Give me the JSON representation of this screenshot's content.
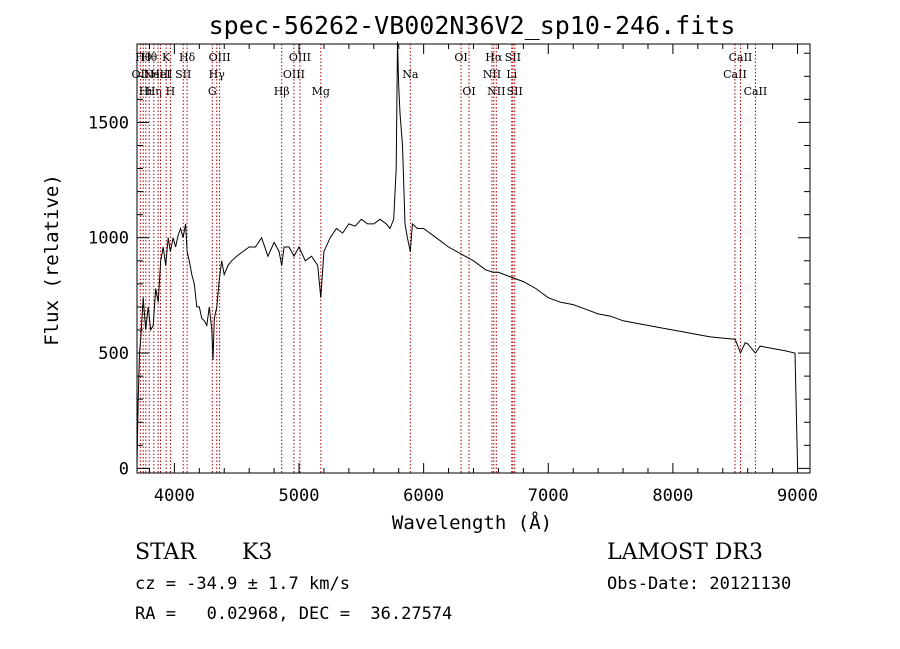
{
  "chart_data": {
    "type": "line",
    "title": "spec-56262-VB002N36V2_sp10-246.fits",
    "xlabel": "Wavelength (Å)",
    "ylabel": "Flux (relative)",
    "xlim": [
      3700,
      9100
    ],
    "ylim": [
      -20,
      1840
    ],
    "x_ticks": [
      4000,
      5000,
      6000,
      7000,
      8000,
      9000
    ],
    "x_tick_labels": [
      "4000",
      "5000",
      "6000",
      "7000",
      "8000",
      "9000"
    ],
    "y_ticks": [
      0,
      500,
      1000,
      1500
    ],
    "y_tick_labels": [
      "0",
      "500",
      "1000",
      "1500"
    ],
    "line_color": "#000000",
    "marker_color": "#aa0000",
    "grid": false,
    "series": [
      {
        "name": "spectrum",
        "x": [
          3700,
          3710,
          3720,
          3730,
          3750,
          3770,
          3790,
          3810,
          3830,
          3850,
          3870,
          3890,
          3910,
          3930,
          3950,
          3968,
          3990,
          4010,
          4030,
          4050,
          4070,
          4090,
          4102,
          4120,
          4140,
          4160,
          4180,
          4200,
          4220,
          4240,
          4260,
          4280,
          4300,
          4310,
          4320,
          4340,
          4360,
          4380,
          4400,
          4430,
          4460,
          4500,
          4550,
          4600,
          4650,
          4700,
          4750,
          4800,
          4840,
          4861,
          4880,
          4920,
          4960,
          5000,
          5050,
          5100,
          5150,
          5175,
          5200,
          5250,
          5300,
          5350,
          5400,
          5450,
          5500,
          5550,
          5600,
          5650,
          5700,
          5730,
          5760,
          5780,
          5790,
          5800,
          5810,
          5830,
          5850,
          5870,
          5893,
          5910,
          5950,
          6000,
          6100,
          6200,
          6300,
          6400,
          6500,
          6563,
          6600,
          6700,
          6800,
          6900,
          6950,
          7000,
          7100,
          7200,
          7300,
          7400,
          7500,
          7600,
          7700,
          7800,
          7900,
          8000,
          8100,
          8200,
          8300,
          8400,
          8500,
          8542,
          8580,
          8600,
          8662,
          8700,
          8800,
          8900,
          8980,
          9000
        ],
        "y": [
          10,
          300,
          500,
          560,
          740,
          600,
          700,
          600,
          620,
          780,
          720,
          900,
          960,
          880,
          1000,
          940,
          1000,
          960,
          1010,
          1040,
          1000,
          1060,
          940,
          900,
          840,
          800,
          700,
          700,
          650,
          640,
          620,
          700,
          600,
          470,
          650,
          700,
          820,
          900,
          840,
          880,
          900,
          920,
          940,
          960,
          960,
          1000,
          920,
          980,
          940,
          880,
          960,
          960,
          920,
          960,
          900,
          920,
          880,
          740,
          940,
          1000,
          1040,
          1020,
          1060,
          1050,
          1080,
          1060,
          1060,
          1080,
          1060,
          1040,
          1080,
          1300,
          1850,
          1660,
          1540,
          1400,
          1060,
          1000,
          940,
          1060,
          1040,
          1040,
          1000,
          960,
          930,
          900,
          860,
          850,
          850,
          830,
          810,
          780,
          760,
          740,
          720,
          710,
          690,
          670,
          660,
          640,
          630,
          620,
          610,
          600,
          590,
          580,
          570,
          565,
          560,
          500,
          545,
          540,
          500,
          530,
          520,
          510,
          500,
          20
        ]
      }
    ],
    "line_markers": [
      {
        "wl": 3727,
        "row": 1,
        "label": "OII"
      },
      {
        "wl": 3750,
        "row": 0,
        "label": "Hθ"
      },
      {
        "wl": 3771,
        "row": 2,
        "label": "Hι"
      },
      {
        "wl": 3798,
        "row": 0,
        "label": "Hθ"
      },
      {
        "wl": 3835,
        "row": 2,
        "label": "Hη"
      },
      {
        "wl": 3869,
        "row": 1,
        "label": "NeIII"
      },
      {
        "wl": 3889,
        "row": 1,
        "label": "HeI"
      },
      {
        "wl": 3934,
        "row": 0,
        "label": "K"
      },
      {
        "wl": 3968,
        "row": 2,
        "label": "H"
      },
      {
        "wl": 4071,
        "row": 1,
        "label": "SII"
      },
      {
        "wl": 4102,
        "row": 0,
        "label": "Hδ"
      },
      {
        "wl": 4304,
        "row": 2,
        "label": "G"
      },
      {
        "wl": 4340,
        "row": 1,
        "label": "Hγ"
      },
      {
        "wl": 4363,
        "row": 0,
        "label": "OIII"
      },
      {
        "wl": 4861,
        "row": 2,
        "label": "Hβ"
      },
      {
        "wl": 4959,
        "row": 1,
        "label": "OIII"
      },
      {
        "wl": 5007,
        "row": 0,
        "label": "OIII"
      },
      {
        "wl": 5175,
        "row": 2,
        "label": "Mg"
      },
      {
        "wl": 5893,
        "row": 1,
        "label": "Na"
      },
      {
        "wl": 6300,
        "row": 0,
        "label": "OI"
      },
      {
        "wl": 6364,
        "row": 2,
        "label": "OI"
      },
      {
        "wl": 6548,
        "row": 1,
        "label": "NII"
      },
      {
        "wl": 6563,
        "row": 0,
        "label": "Hα"
      },
      {
        "wl": 6583,
        "row": 2,
        "label": "NII"
      },
      {
        "wl": 6707,
        "row": 1,
        "label": "Li"
      },
      {
        "wl": 6716,
        "row": 0,
        "label": "SII"
      },
      {
        "wl": 6731,
        "row": 2,
        "label": "SII"
      },
      {
        "wl": 8498,
        "row": 1,
        "label": "CaII"
      },
      {
        "wl": 8542,
        "row": 0,
        "label": "CaII"
      },
      {
        "wl": 8662,
        "row": 2,
        "label": "CaII"
      }
    ]
  },
  "info": {
    "class": "STAR",
    "subclass": "K3",
    "survey": "LAMOST DR3",
    "cz": "cz = -34.9 ± 1.7 km/s",
    "obs_date": "Obs-Date: 20121130",
    "coords": "RA =   0.02968, DEC =  36.27574"
  }
}
